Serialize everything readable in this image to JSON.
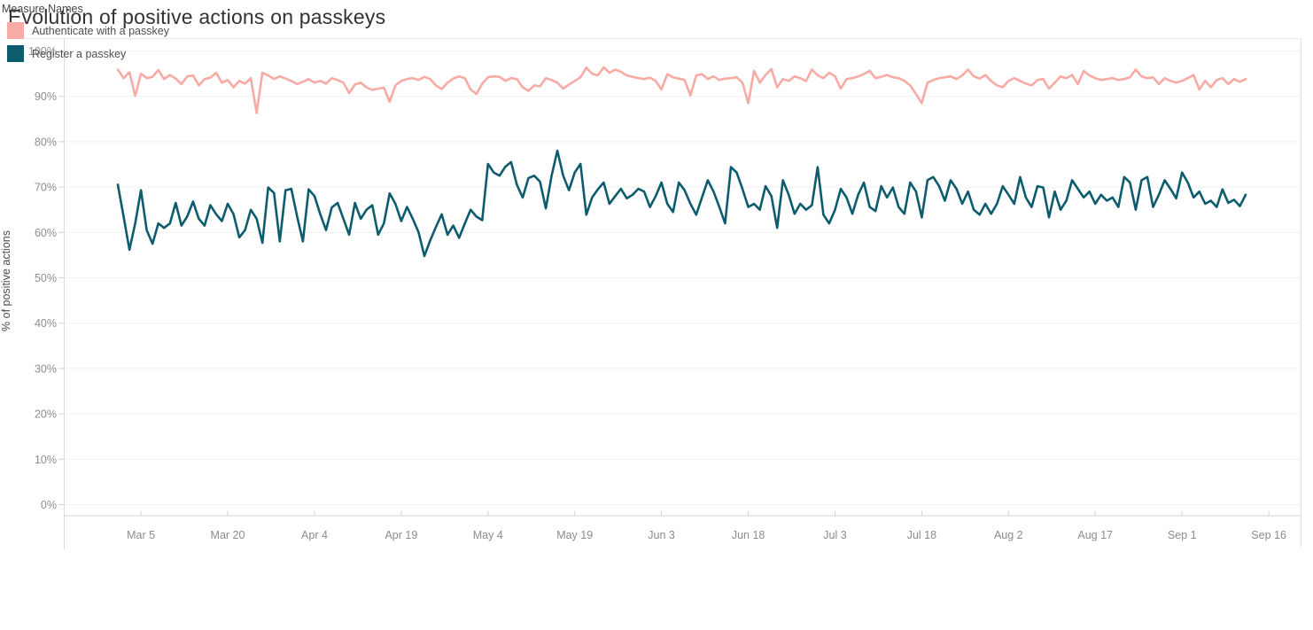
{
  "title": "Evolution of positive actions on passkeys",
  "legend": {
    "title": "Measure Names",
    "items": [
      {
        "label": "Authenticate with a passkey",
        "color": "#f8aaa4"
      },
      {
        "label": "Register a passkey",
        "color": "#0d5c6e"
      }
    ]
  },
  "chart_data": {
    "type": "line",
    "title": "Evolution of positive actions on passkeys",
    "xlabel": "",
    "ylabel": "% of positive actions",
    "ylim": [
      0,
      100
    ],
    "grid": true,
    "legend_position": "bottom-left",
    "y_ticks": [
      0,
      10,
      20,
      30,
      40,
      50,
      60,
      70,
      80,
      90,
      100
    ],
    "y_tick_labels": [
      "0%",
      "10%",
      "20%",
      "30%",
      "40%",
      "50%",
      "60%",
      "70%",
      "80%",
      "90%",
      "100%"
    ],
    "x_tick_labels": [
      "Mar 5",
      "Mar 20",
      "Apr 4",
      "Apr 19",
      "May 4",
      "May 19",
      "Jun 3",
      "Jun 18",
      "Jul 3",
      "Jul 18",
      "Aug 2",
      "Aug 17",
      "Sep 1",
      "Sep 16"
    ],
    "x_tick_days": [
      4,
      19,
      34,
      49,
      64,
      79,
      94,
      109,
      124,
      139,
      154,
      169,
      184,
      199
    ],
    "series": [
      {
        "name": "Authenticate with a passkey",
        "color": "#f8aaa4",
        "values": [
          95.9,
          94.0,
          95.3,
          90.1,
          95.0,
          94.0,
          94.3,
          95.8,
          93.8,
          94.7,
          93.9,
          92.7,
          94.4,
          94.6,
          92.4,
          93.8,
          94.1,
          95.2,
          93.0,
          93.6,
          92.0,
          93.4,
          92.8,
          94.0,
          86.3,
          95.2,
          94.6,
          93.8,
          94.4,
          93.9,
          93.4,
          92.7,
          93.2,
          93.8,
          93.0,
          93.4,
          92.8,
          94.0,
          93.6,
          93.0,
          90.7,
          92.6,
          93.0,
          92.0,
          91.4,
          91.7,
          91.9,
          88.8,
          92.4,
          93.4,
          93.8,
          94.0,
          93.6,
          94.3,
          93.8,
          92.4,
          91.6,
          93.0,
          93.9,
          94.4,
          94.0,
          91.5,
          90.5,
          92.8,
          94.2,
          94.4,
          94.3,
          93.4,
          94.0,
          93.8,
          92.0,
          91.2,
          92.4,
          92.2,
          94.0,
          93.6,
          93.0,
          91.7,
          92.6,
          93.4,
          94.2,
          96.3,
          95.0,
          94.6,
          96.4,
          95.2,
          95.9,
          95.4,
          94.6,
          94.3,
          94.0,
          93.8,
          94.1,
          93.4,
          91.5,
          94.9,
          94.2,
          93.9,
          93.6,
          90.2,
          94.6,
          94.9,
          93.8,
          94.4,
          93.6,
          93.9,
          94.0,
          94.2,
          93.0,
          88.5,
          95.6,
          93.0,
          94.7,
          96.0,
          92.0,
          93.8,
          93.4,
          94.4,
          94.0,
          93.4,
          95.9,
          94.6,
          94.0,
          95.2,
          94.4,
          91.7,
          93.8,
          94.0,
          94.4,
          94.9,
          95.6,
          94.0,
          94.3,
          94.7,
          94.2,
          94.0,
          93.4,
          92.4,
          90.5,
          88.5,
          93.0,
          93.6,
          94.0,
          94.2,
          94.4,
          93.8,
          94.6,
          95.9,
          94.4,
          93.9,
          94.7,
          93.4,
          92.4,
          92.0,
          93.4,
          94.0,
          93.4,
          92.8,
          92.4,
          93.6,
          93.8,
          91.7,
          93.0,
          94.4,
          94.0,
          94.7,
          92.7,
          95.6,
          94.6,
          94.0,
          93.6,
          93.8,
          94.0,
          93.6,
          93.8,
          94.2,
          95.9,
          94.4,
          94.0,
          94.2,
          92.7,
          94.0,
          93.4,
          93.0,
          93.4,
          94.0,
          94.7,
          91.5,
          93.4,
          92.0,
          93.6,
          94.0,
          92.7,
          93.8,
          93.2,
          93.8
        ]
      },
      {
        "name": "Register a passkey",
        "color": "#0d5c6e",
        "values": [
          70.5,
          63.5,
          56.2,
          62.0,
          69.3,
          60.5,
          57.5,
          62.0,
          61.0,
          62.0,
          66.5,
          61.5,
          63.5,
          66.8,
          63.0,
          61.5,
          66.0,
          64.0,
          62.5,
          66.3,
          64.0,
          58.9,
          60.5,
          65.0,
          63.0,
          57.7,
          69.9,
          68.7,
          58.0,
          69.3,
          69.6,
          63.5,
          58.0,
          69.5,
          68.0,
          64.0,
          60.5,
          65.5,
          66.5,
          63.0,
          59.5,
          66.5,
          63.0,
          65.0,
          66.0,
          59.5,
          62.0,
          68.6,
          66.3,
          62.5,
          65.6,
          63.0,
          60.0,
          54.8,
          58.2,
          61.2,
          64.0,
          59.5,
          61.5,
          58.8,
          62.0,
          65.0,
          63.5,
          62.7,
          75.1,
          73.2,
          72.5,
          74.5,
          75.5,
          70.5,
          67.7,
          72.0,
          72.5,
          71.2,
          65.3,
          72.5,
          78.0,
          72.5,
          69.3,
          73.2,
          75.1,
          63.9,
          67.7,
          69.5,
          71.0,
          66.3,
          68.0,
          69.6,
          67.5,
          68.3,
          69.6,
          69.0,
          65.6,
          68.0,
          71.0,
          66.3,
          64.5,
          71.0,
          69.3,
          66.3,
          63.9,
          67.7,
          71.5,
          69.0,
          65.6,
          62.0,
          74.4,
          73.2,
          69.6,
          65.6,
          66.3,
          65.0,
          70.2,
          68.0,
          61.0,
          71.5,
          68.3,
          64.1,
          66.3,
          65.0,
          66.0,
          74.4,
          63.9,
          62.0,
          65.0,
          69.6,
          67.7,
          64.1,
          68.3,
          71.0,
          65.6,
          64.7,
          70.2,
          67.7,
          69.9,
          65.6,
          64.1,
          71.0,
          69.0,
          63.3,
          71.5,
          72.2,
          70.2,
          67.0,
          71.5,
          69.6,
          66.3,
          69.0,
          65.0,
          63.9,
          66.3,
          64.1,
          66.3,
          70.2,
          68.3,
          66.3,
          72.2,
          67.7,
          65.6,
          70.2,
          69.9,
          63.3,
          69.0,
          65.0,
          67.0,
          71.5,
          69.6,
          67.7,
          69.0,
          66.3,
          68.3,
          67.0,
          67.7,
          65.6,
          72.2,
          71.0,
          65.0,
          71.5,
          72.2,
          65.6,
          68.3,
          71.5,
          69.6,
          67.5,
          73.2,
          71.0,
          67.7,
          69.0,
          66.3,
          67.0,
          65.6,
          69.5,
          66.5,
          67.2,
          65.8,
          68.3
        ]
      }
    ]
  }
}
